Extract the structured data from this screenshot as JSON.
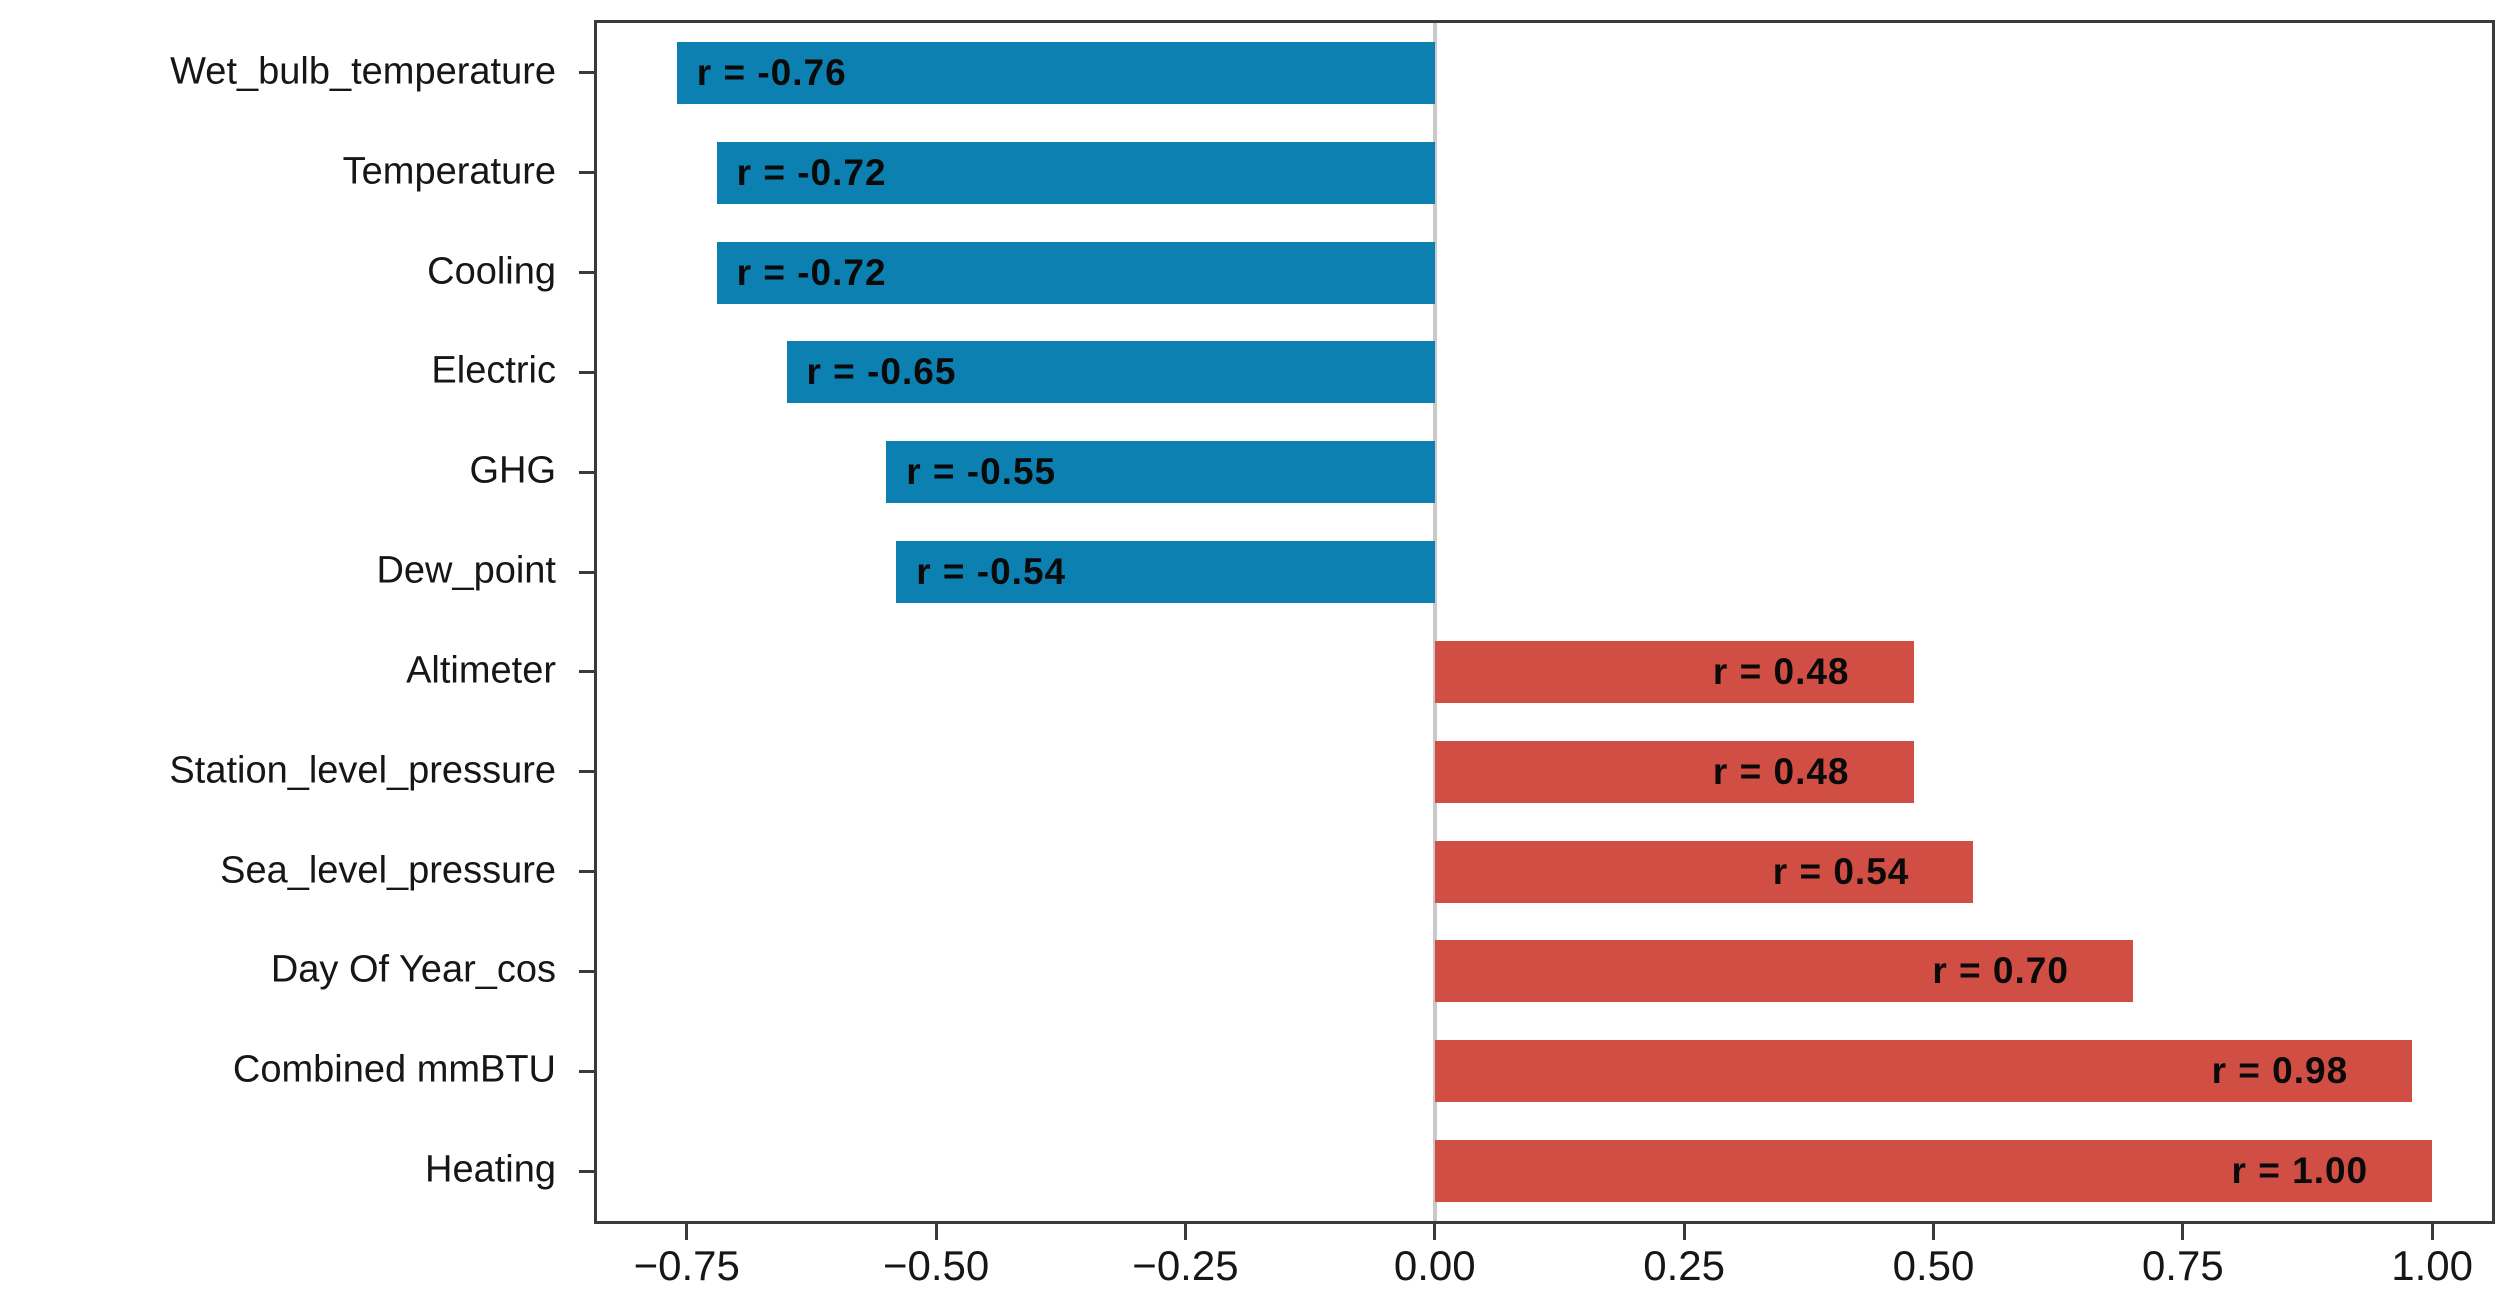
{
  "figure": {
    "background": "#ffffff",
    "frame_color": "#3a3a3a",
    "text_color": "#161616"
  },
  "chart_data": {
    "type": "bar",
    "orientation": "horizontal",
    "title": "",
    "xlabel": "",
    "ylabel": "",
    "categories": [
      "Wet_bulb_temperature",
      "Temperature",
      "Cooling",
      "Electric",
      "GHG",
      "Dew_point",
      "Altimeter",
      "Station_level_pressure",
      "Sea_level_pressure",
      "Day Of Year_cos",
      "Combined mmBTU",
      "Heating"
    ],
    "values": [
      -0.76,
      -0.72,
      -0.72,
      -0.65,
      -0.55,
      -0.54,
      0.48,
      0.48,
      0.54,
      0.7,
      0.98,
      1.0
    ],
    "bar_labels": [
      "r = -0.76",
      "r = -0.72",
      "r = -0.72",
      "r = -0.65",
      "r = -0.55",
      "r = -0.54",
      "r = 0.48",
      "r = 0.48",
      "r = 0.54",
      "r = 0.70",
      "r = 0.98",
      "r = 1.00"
    ],
    "xlim": [
      -0.84,
      1.06
    ],
    "x_ticks": [
      -0.75,
      -0.5,
      -0.25,
      0.0,
      0.25,
      0.5,
      0.75,
      1.0
    ],
    "x_tick_labels": [
      "−0.75",
      "−0.50",
      "−0.25",
      "0.00",
      "0.25",
      "0.50",
      "0.75",
      "1.00"
    ],
    "colors": {
      "negative": "#0d80b2",
      "positive": "#d14e45",
      "zero_line": "#c9c9c9"
    },
    "grid": false,
    "legend": "none",
    "bar_label_position": {
      "negative": "inside-start",
      "positive": "inside-end"
    }
  }
}
